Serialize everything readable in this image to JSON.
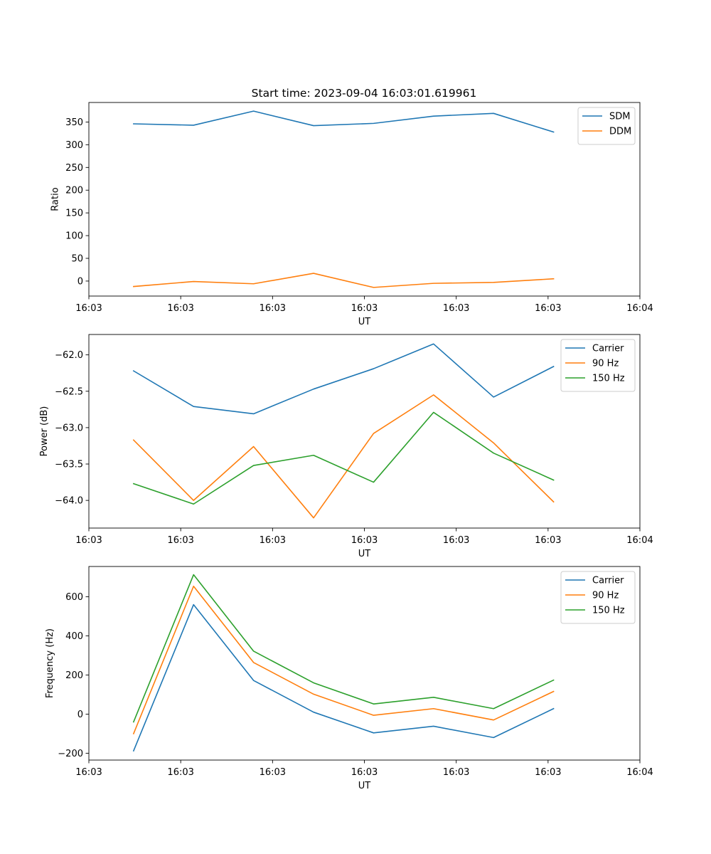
{
  "figure": {
    "title": "Start time: 2023-09-04 16:03:01.619961"
  },
  "chart_data": [
    {
      "type": "line",
      "title": "Start time: 2023-09-04 16:03:01.619961",
      "xlabel": "UT",
      "ylabel": "Ratio",
      "xlim": [
        0,
        9
      ],
      "ylim": [
        -33,
        393
      ],
      "x_ticks": [
        {
          "value": 0,
          "label": "16:03"
        },
        {
          "value": 1.5,
          "label": "16:03"
        },
        {
          "value": 3,
          "label": "16:03"
        },
        {
          "value": 4.5,
          "label": "16:03"
        },
        {
          "value": 6,
          "label": "16:03"
        },
        {
          "value": 7.5,
          "label": "16:03"
        },
        {
          "value": 9,
          "label": "16:04"
        }
      ],
      "y_ticks": [
        0,
        50,
        100,
        150,
        200,
        250,
        300,
        350
      ],
      "x": [
        0.73,
        1.71,
        2.69,
        3.67,
        4.65,
        5.63,
        6.61,
        7.59
      ],
      "series": [
        {
          "name": "SDM",
          "color": "#1f77b4",
          "values": [
            346,
            343,
            374,
            342,
            347,
            363,
            369,
            328
          ]
        },
        {
          "name": "DDM",
          "color": "#ff7f0e",
          "values": [
            -12,
            -1,
            -6,
            17,
            -14,
            -5,
            -3,
            5
          ]
        }
      ],
      "legend_position": "upper right"
    },
    {
      "type": "line",
      "title": "",
      "xlabel": "UT",
      "ylabel": "Power (dB)",
      "xlim": [
        0,
        9
      ],
      "ylim": [
        -64.38,
        -61.72
      ],
      "x_ticks": [
        {
          "value": 0,
          "label": "16:03"
        },
        {
          "value": 1.5,
          "label": "16:03"
        },
        {
          "value": 3,
          "label": "16:03"
        },
        {
          "value": 4.5,
          "label": "16:03"
        },
        {
          "value": 6,
          "label": "16:03"
        },
        {
          "value": 7.5,
          "label": "16:03"
        },
        {
          "value": 9,
          "label": "16:04"
        }
      ],
      "y_ticks": [
        -64.0,
        -63.5,
        -63.0,
        -62.5,
        -62.0
      ],
      "x": [
        0.73,
        1.71,
        2.69,
        3.67,
        4.65,
        5.63,
        6.61,
        7.59
      ],
      "series": [
        {
          "name": "Carrier",
          "color": "#1f77b4",
          "values": [
            -62.22,
            -62.71,
            -62.81,
            -62.47,
            -62.19,
            -61.85,
            -62.58,
            -62.16
          ]
        },
        {
          "name": "90 Hz",
          "color": "#ff7f0e",
          "values": [
            -63.17,
            -64.0,
            -63.26,
            -64.24,
            -63.08,
            -62.55,
            -63.21,
            -64.02
          ]
        },
        {
          "name": "150 Hz",
          "color": "#2ca02c",
          "values": [
            -63.77,
            -64.05,
            -63.52,
            -63.38,
            -63.75,
            -62.79,
            -63.35,
            -63.72
          ]
        }
      ],
      "legend_position": "upper right"
    },
    {
      "type": "line",
      "title": "",
      "xlabel": "UT",
      "ylabel": "Frequency (Hz)",
      "xlim": [
        0,
        9
      ],
      "ylim": [
        -235,
        755
      ],
      "x_ticks": [
        {
          "value": 0,
          "label": "16:03"
        },
        {
          "value": 1.5,
          "label": "16:03"
        },
        {
          "value": 3,
          "label": "16:03"
        },
        {
          "value": 4.5,
          "label": "16:03"
        },
        {
          "value": 6,
          "label": "16:03"
        },
        {
          "value": 7.5,
          "label": "16:03"
        },
        {
          "value": 9,
          "label": "16:04"
        }
      ],
      "y_ticks": [
        -200,
        0,
        200,
        400,
        600
      ],
      "x": [
        0.73,
        1.71,
        2.69,
        3.67,
        4.65,
        5.63,
        6.61,
        7.59
      ],
      "series": [
        {
          "name": "Carrier",
          "color": "#1f77b4",
          "values": [
            -188,
            560,
            172,
            10,
            -96,
            -62,
            -120,
            28
          ]
        },
        {
          "name": "90 Hz",
          "color": "#ff7f0e",
          "values": [
            -100,
            654,
            264,
            102,
            -6,
            28,
            -30,
            116
          ]
        },
        {
          "name": "150 Hz",
          "color": "#2ca02c",
          "values": [
            -40,
            713,
            322,
            160,
            52,
            86,
            28,
            174
          ]
        }
      ],
      "legend_position": "upper right"
    }
  ]
}
